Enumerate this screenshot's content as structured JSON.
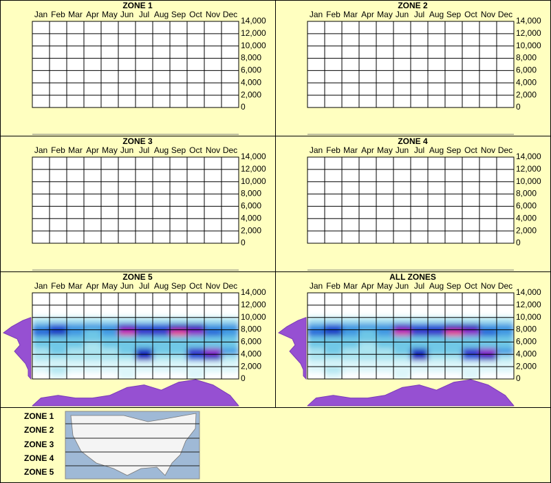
{
  "chart_data": [
    {
      "type": "heatmap",
      "title": "ZONE 1",
      "categories": [
        "Jan",
        "Feb",
        "Mar",
        "Apr",
        "May",
        "Jun",
        "Jul",
        "Aug",
        "Sep",
        "Oct",
        "Nov",
        "Dec"
      ],
      "ylim": [
        0,
        14000
      ],
      "yticks": [
        0,
        {
          "value": 2000,
          "label": "2,000"
        },
        {
          "value": 4000,
          "label": "4,000"
        },
        {
          "value": 6000,
          "label": "6,000"
        },
        {
          "value": 8000,
          "label": "8,000"
        },
        {
          "value": 10000,
          "label": "10,000"
        },
        {
          "value": 12000,
          "label": "12,000"
        },
        {
          "value": 14000,
          "label": "14,000"
        }
      ],
      "grid": true
    },
    {
      "type": "heatmap",
      "title": "ZONE 2",
      "categories": [
        "Jan",
        "Feb",
        "Mar",
        "Apr",
        "May",
        "Jun",
        "Jul",
        "Aug",
        "Sep",
        "Oct",
        "Nov",
        "Dec"
      ],
      "ylim": [
        0,
        14000
      ],
      "yticks": [
        0,
        {
          "value": 2000,
          "label": "2,000"
        },
        {
          "value": 4000,
          "label": "4,000"
        },
        {
          "value": 6000,
          "label": "6,000"
        },
        {
          "value": 8000,
          "label": "8,000"
        },
        {
          "value": 10000,
          "label": "10,000"
        },
        {
          "value": 12000,
          "label": "12,000"
        },
        {
          "value": 14000,
          "label": "14,000"
        }
      ],
      "grid": true
    },
    {
      "type": "heatmap",
      "title": "ZONE 3",
      "categories": [
        "Jan",
        "Feb",
        "Mar",
        "Apr",
        "May",
        "Jun",
        "Jul",
        "Aug",
        "Sep",
        "Oct",
        "Nov",
        "Dec"
      ],
      "ylim": [
        0,
        14000
      ],
      "yticks": [
        0,
        {
          "value": 2000,
          "label": "2,000"
        },
        {
          "value": 4000,
          "label": "4,000"
        },
        {
          "value": 6000,
          "label": "6,000"
        },
        {
          "value": 8000,
          "label": "8,000"
        },
        {
          "value": 10000,
          "label": "10,000"
        },
        {
          "value": 12000,
          "label": "12,000"
        },
        {
          "value": 14000,
          "label": "14,000"
        }
      ],
      "grid": true
    },
    {
      "type": "heatmap",
      "title": "ZONE 4",
      "categories": [
        "Jan",
        "Feb",
        "Mar",
        "Apr",
        "May",
        "Jun",
        "Jul",
        "Aug",
        "Sep",
        "Oct",
        "Nov",
        "Dec"
      ],
      "ylim": [
        0,
        14000
      ],
      "yticks": [
        0,
        {
          "value": 2000,
          "label": "2,000"
        },
        {
          "value": 4000,
          "label": "4,000"
        },
        {
          "value": 6000,
          "label": "6,000"
        },
        {
          "value": 8000,
          "label": "8,000"
        },
        {
          "value": 10000,
          "label": "10,000"
        },
        {
          "value": 12000,
          "label": "12,000"
        },
        {
          "value": 14000,
          "label": "14,000"
        }
      ],
      "grid": true
    },
    {
      "type": "heatmap",
      "title": "ZONE 5",
      "categories": [
        "Jan",
        "Feb",
        "Mar",
        "Apr",
        "May",
        "Jun",
        "Jul",
        "Aug",
        "Sep",
        "Oct",
        "Nov",
        "Dec"
      ],
      "ylim": [
        0,
        14000
      ],
      "yticks": [
        0,
        {
          "value": 2000,
          "label": "2,000"
        },
        {
          "value": 4000,
          "label": "4,000"
        },
        {
          "value": 6000,
          "label": "6,000"
        },
        {
          "value": 8000,
          "label": "8,000"
        },
        {
          "value": 10000,
          "label": "10,000"
        },
        {
          "value": 12000,
          "label": "12,000"
        },
        {
          "value": 14000,
          "label": "14,000"
        }
      ],
      "grid": true,
      "y_bins": [
        500,
        1500,
        2500,
        3500,
        4500,
        5500,
        6500,
        7500,
        8500,
        9500
      ],
      "z": [
        [
          0,
          1,
          0,
          0,
          0,
          1,
          0,
          0,
          0,
          1,
          0,
          0
        ],
        [
          1,
          2,
          1,
          1,
          1,
          1,
          1,
          1,
          1,
          1,
          1,
          1
        ],
        [
          1,
          1,
          1,
          1,
          1,
          1,
          1,
          1,
          1,
          1,
          1,
          1
        ],
        [
          2,
          2,
          2,
          2,
          2,
          2,
          6,
          2,
          2,
          5,
          6,
          2
        ],
        [
          2,
          3,
          2,
          2,
          2,
          3,
          6,
          3,
          3,
          7,
          8,
          4
        ],
        [
          3,
          3,
          3,
          2,
          3,
          3,
          3,
          3,
          3,
          3,
          3,
          3
        ],
        [
          3,
          3,
          3,
          3,
          3,
          3,
          3,
          3,
          3,
          3,
          3,
          3
        ],
        [
          5,
          6,
          4,
          3,
          4,
          9,
          7,
          7,
          10,
          8,
          5,
          4
        ],
        [
          4,
          5,
          4,
          4,
          4,
          7,
          5,
          5,
          6,
          6,
          4,
          4
        ],
        [
          2,
          2,
          2,
          2,
          2,
          2,
          2,
          2,
          2,
          2,
          2,
          2
        ]
      ],
      "elevation_profile": [
        1,
        1,
        2,
        4,
        6,
        4,
        5,
        10,
        7,
        3
      ],
      "month_profile": [
        3,
        4,
        3,
        3,
        4,
        7,
        8,
        6,
        9,
        10,
        8,
        4
      ]
    },
    {
      "type": "heatmap",
      "title": "ALL ZONES",
      "categories": [
        "Jan",
        "Feb",
        "Mar",
        "Apr",
        "May",
        "Jun",
        "Jul",
        "Aug",
        "Sep",
        "Oct",
        "Nov",
        "Dec"
      ],
      "ylim": [
        0,
        14000
      ],
      "yticks": [
        0,
        {
          "value": 2000,
          "label": "2,000"
        },
        {
          "value": 4000,
          "label": "4,000"
        },
        {
          "value": 6000,
          "label": "6,000"
        },
        {
          "value": 8000,
          "label": "8,000"
        },
        {
          "value": 10000,
          "label": "10,000"
        },
        {
          "value": 12000,
          "label": "12,000"
        },
        {
          "value": 14000,
          "label": "14,000"
        }
      ],
      "grid": true,
      "y_bins": [
        500,
        1500,
        2500,
        3500,
        4500,
        5500,
        6500,
        7500,
        8500,
        9500
      ],
      "z": [
        [
          0,
          1,
          0,
          0,
          0,
          1,
          0,
          0,
          0,
          1,
          0,
          0
        ],
        [
          1,
          2,
          1,
          1,
          1,
          1,
          1,
          1,
          1,
          1,
          1,
          1
        ],
        [
          1,
          1,
          1,
          1,
          1,
          1,
          1,
          1,
          1,
          1,
          1,
          1
        ],
        [
          2,
          2,
          2,
          2,
          2,
          2,
          6,
          2,
          2,
          5,
          6,
          2
        ],
        [
          2,
          3,
          2,
          2,
          2,
          3,
          6,
          3,
          3,
          7,
          8,
          4
        ],
        [
          3,
          3,
          3,
          2,
          3,
          3,
          3,
          3,
          3,
          3,
          3,
          3
        ],
        [
          3,
          3,
          3,
          3,
          3,
          3,
          3,
          3,
          3,
          3,
          3,
          3
        ],
        [
          5,
          6,
          4,
          3,
          4,
          9,
          7,
          7,
          10,
          8,
          5,
          4
        ],
        [
          4,
          5,
          4,
          4,
          4,
          7,
          5,
          5,
          6,
          6,
          4,
          4
        ],
        [
          2,
          2,
          2,
          2,
          2,
          2,
          2,
          2,
          2,
          2,
          2,
          2
        ]
      ],
      "elevation_profile": [
        1,
        1,
        2,
        4,
        6,
        4,
        5,
        10,
        7,
        3
      ],
      "month_profile": [
        3,
        4,
        3,
        3,
        4,
        7,
        8,
        6,
        9,
        10,
        8,
        4
      ]
    }
  ],
  "zone_legend": [
    "ZONE 1",
    "ZONE 2",
    "ZONE 3",
    "ZONE 4",
    "ZONE 5"
  ]
}
